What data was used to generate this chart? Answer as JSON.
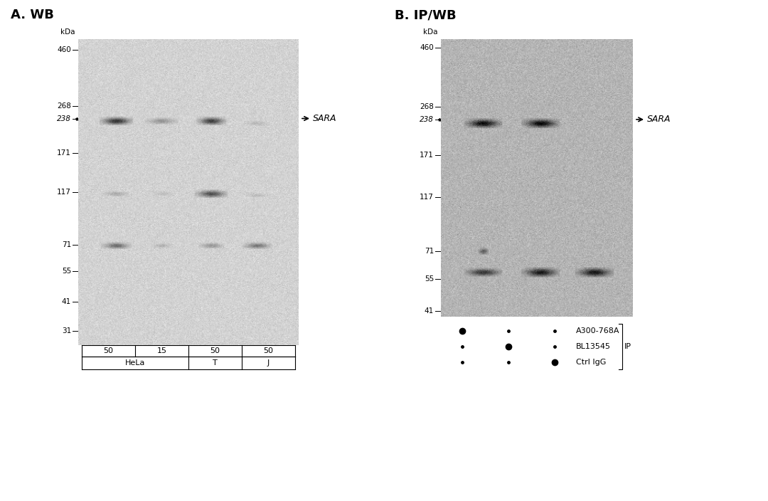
{
  "panel_A_title": "A. WB",
  "panel_B_title": "B. IP/WB",
  "mw_markers": [
    460,
    268,
    238,
    171,
    117,
    71,
    55,
    41,
    31
  ],
  "mw_markers_B": [
    460,
    268,
    238,
    171,
    117,
    71,
    55,
    41
  ],
  "sara_label": "SARA",
  "panel_A_lanes": [
    "50",
    "15",
    "50",
    "50"
  ],
  "panel_A_groups": [
    [
      "HeLa",
      2
    ],
    [
      "T",
      1
    ],
    [
      "J",
      1
    ]
  ],
  "panel_B_dots": [
    [
      "large",
      "small",
      "small"
    ],
    [
      "small",
      "large",
      "small"
    ],
    [
      "small",
      "small",
      "large"
    ]
  ],
  "panel_B_labels": [
    "A300-768A",
    "BL13545",
    "Ctrl IgG"
  ],
  "ip_label": "IP",
  "bg_color_A": "#d8d0cc",
  "bg_color_B": "#c8c0bc",
  "figure_bg": "#ffffff"
}
